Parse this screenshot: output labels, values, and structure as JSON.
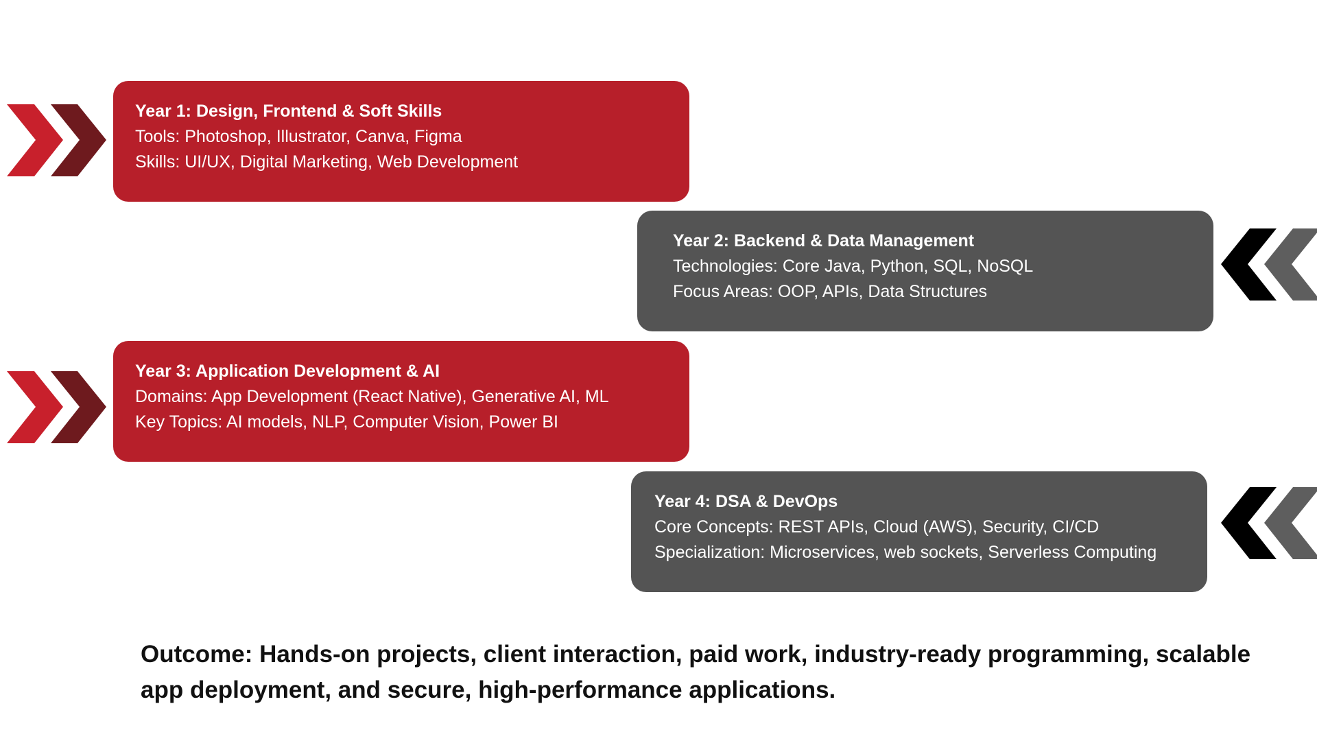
{
  "colors": {
    "red_card": "#b71f2a",
    "gray_card": "#545454",
    "red_chevron": "#c8202c",
    "dark_red_chevron": "#6e1a1e",
    "black_chevron": "#000000",
    "gray_chevron": "#5e5e5e",
    "text_light": "#ffffff",
    "text_dark": "#111111"
  },
  "years": [
    {
      "title": "Year 1: Design, Frontend & Soft Skills",
      "line1": "Tools: Photoshop, Illustrator, Canva, Figma",
      "line2": "Skills: UI/UX, Digital Marketing, Web Development",
      "chevron_icon": "double-chevron-right-icon"
    },
    {
      "title": "Year 2: Backend & Data Management",
      "line1": "Technologies: Core Java, Python, SQL, NoSQL",
      "line2": "Focus Areas: OOP, APIs, Data Structures",
      "chevron_icon": "double-chevron-left-icon"
    },
    {
      "title": "Year 3: Application Development & AI",
      "line1": "Domains: App Development (React Native), Generative AI, ML",
      "line2": "Key Topics: AI models, NLP, Computer Vision, Power BI",
      "chevron_icon": "double-chevron-right-icon"
    },
    {
      "title": "Year 4: DSA & DevOps",
      "line1": "Core Concepts: REST APIs, Cloud (AWS), Security, CI/CD",
      "line2": "Specialization: Microservices, web sockets, Serverless Computing",
      "chevron_icon": "double-chevron-left-icon"
    }
  ],
  "outcome": {
    "text": "Outcome: Hands-on projects, client interaction, paid work, industry-ready programming, scalable app deployment, and secure, high-performance applications."
  }
}
